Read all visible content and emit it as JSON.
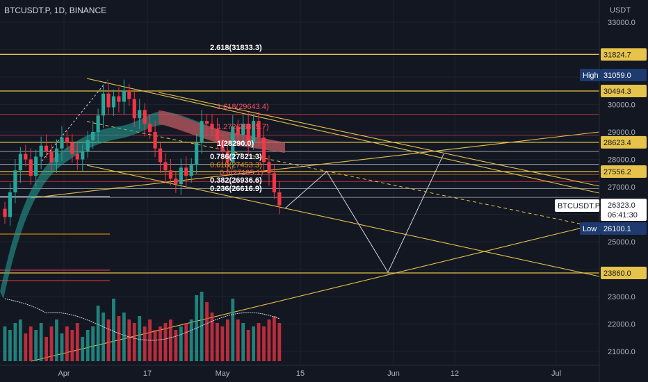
{
  "header": {
    "symbol": "BTCUSDT.P, 1D, BINANCE"
  },
  "price_axis": {
    "currency": "USDT",
    "ticks": [
      "33000.0",
      "30000.0",
      "29000.0",
      "28000.0",
      "27000.0",
      "25000.0",
      "23000.0",
      "22000.0",
      "21000.0"
    ]
  },
  "time_axis": {
    "ticks": [
      "Apr",
      "17",
      "May",
      "15",
      "Jun",
      "12",
      "Jul"
    ]
  },
  "badges": {
    "b31824": "31824.7",
    "high_label": "High",
    "high_value": "31059.0",
    "b30494": "30494.3",
    "b28623": "28623.4",
    "b27556": "27556.2",
    "symbol_label": "BTCUSDT.P",
    "last_price": "26323.0",
    "countdown": "06:41:30",
    "low_label": "Low",
    "low_value": "26100.1",
    "b23860": "23860.0"
  },
  "fib_labels": {
    "f2618": "2.618(31833.3)",
    "f1618": "1.618(29643.4)",
    "f1272": "1.272(28885.7)",
    "f1": "1(28290.0)",
    "f0786": "0.786(27821.3)",
    "f0618": "0.618(27453.3)",
    "f05": "0.5(27195.1)",
    "f0382": "0.382(26936.6)",
    "f0236": "0.236(26616.9)"
  },
  "chart_data": {
    "type": "candlestick",
    "symbol": "BTCUSDT.P",
    "interval": "1D",
    "exchange": "BINANCE",
    "y_unit": "USDT",
    "ylim": [
      20500,
      33500
    ],
    "x_ticks": [
      "Apr",
      "17",
      "May",
      "15",
      "Jun",
      "12",
      "Jul"
    ],
    "last_price": 26323.0,
    "high": 31059.0,
    "low": 26100.1,
    "horizontal_levels": [
      31824.7,
      30494.3,
      28623.4,
      27556.2,
      23860.0
    ],
    "fibonacci": [
      {
        "level": 2.618,
        "price": 31833.3
      },
      {
        "level": 1.618,
        "price": 29643.4
      },
      {
        "level": 1.272,
        "price": 28885.7
      },
      {
        "level": 1,
        "price": 28290.0
      },
      {
        "level": 0.786,
        "price": 27821.3
      },
      {
        "level": 0.618,
        "price": 27453.3
      },
      {
        "level": 0.5,
        "price": 27195.1
      },
      {
        "level": 0.382,
        "price": 26936.6
      },
      {
        "level": 0.236,
        "price": 26616.9
      }
    ],
    "closes": [
      25900,
      26800,
      27600,
      28200,
      28000,
      27400,
      28100,
      28500,
      28300,
      27900,
      28400,
      28800,
      28600,
      28200,
      28000,
      28300,
      28700,
      29000,
      29600,
      30400,
      29900,
      30300,
      30100,
      30500,
      30200,
      29500,
      29800,
      29300,
      29000,
      28400,
      27900,
      27600,
      27300,
      27100,
      27700,
      27400,
      27800,
      28600,
      29400,
      29300,
      29100,
      28700,
      28300,
      27900,
      29200,
      28900,
      29300,
      28600,
      29400,
      28800,
      27900,
      27500,
      26800,
      26323
    ],
    "volume_ratio": [
      0.5,
      0.45,
      0.55,
      0.6,
      0.4,
      0.5,
      0.45,
      0.55,
      0.35,
      0.5,
      0.6,
      0.4,
      0.5,
      0.45,
      0.55,
      0.35,
      0.45,
      0.5,
      0.8,
      0.7,
      0.6,
      0.9,
      0.65,
      0.7,
      0.6,
      0.55,
      0.65,
      0.5,
      0.6,
      0.45,
      0.5,
      0.55,
      0.6,
      0.45,
      0.5,
      0.55,
      0.6,
      0.95,
      1.0,
      0.85,
      0.7,
      0.55,
      0.5,
      0.6,
      0.9,
      0.6,
      0.55,
      0.45,
      0.5,
      0.55,
      0.5,
      0.6,
      0.65,
      0.55
    ]
  }
}
